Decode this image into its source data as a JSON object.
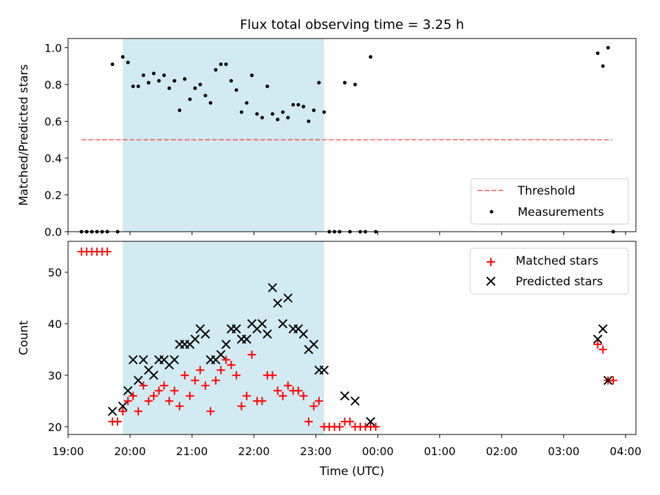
{
  "title": "Flux total observing time = 3.25 h",
  "xlabel": "Time (UTC)",
  "x_tick_labels": [
    "19:00",
    "20:00",
    "21:00",
    "22:00",
    "23:00",
    "00:00",
    "01:00",
    "02:00",
    "03:00",
    "04:00"
  ],
  "colors": {
    "shade": "#add8e6",
    "threshold": "#ff0000",
    "measurements": "#000000",
    "matched": "#ff0000",
    "predicted": "#000000"
  },
  "chart_data": [
    {
      "type": "scatter",
      "panel": "top",
      "ylabel": "Matched/Predicted stars",
      "xlim": [
        "19:00",
        "04:10"
      ],
      "ylim": [
        0,
        1.05
      ],
      "y_ticks": [
        0.0,
        0.2,
        0.4,
        0.6,
        0.8,
        1.0
      ],
      "y_tick_labels": [
        "0.0",
        "0.2",
        "0.4",
        "0.6",
        "0.8",
        "1.0"
      ],
      "shaded_span": [
        "19:53",
        "23:08"
      ],
      "legend_position": "lower right",
      "threshold": {
        "name": "Threshold",
        "y": 0.5,
        "x_range": [
          "19:13",
          "03:47"
        ],
        "style": "dashed"
      },
      "series": [
        {
          "name": "Measurements",
          "marker": "dot",
          "points": [
            [
              "19:13",
              0
            ],
            [
              "19:18",
              0
            ],
            [
              "19:23",
              0
            ],
            [
              "19:28",
              0
            ],
            [
              "19:33",
              0
            ],
            [
              "19:38",
              0
            ],
            [
              "19:43",
              0.91
            ],
            [
              "19:48",
              0
            ],
            [
              "19:53",
              0.95
            ],
            [
              "19:58",
              0.92
            ],
            [
              "20:03",
              0.79
            ],
            [
              "20:08",
              0.79
            ],
            [
              "20:13",
              0.85
            ],
            [
              "20:18",
              0.81
            ],
            [
              "20:23",
              0.86
            ],
            [
              "20:28",
              0.82
            ],
            [
              "20:33",
              0.85
            ],
            [
              "20:38",
              0.78
            ],
            [
              "20:43",
              0.82
            ],
            [
              "20:48",
              0.66
            ],
            [
              "20:53",
              0.83
            ],
            [
              "20:58",
              0.72
            ],
            [
              "21:03",
              0.78
            ],
            [
              "21:08",
              0.8
            ],
            [
              "21:13",
              0.74
            ],
            [
              "21:18",
              0.7
            ],
            [
              "21:23",
              0.88
            ],
            [
              "21:28",
              0.91
            ],
            [
              "21:33",
              0.91
            ],
            [
              "21:38",
              0.82
            ],
            [
              "21:43",
              0.77
            ],
            [
              "21:48",
              0.65
            ],
            [
              "21:53",
              0.7
            ],
            [
              "21:58",
              0.85
            ],
            [
              "22:03",
              0.64
            ],
            [
              "22:08",
              0.62
            ],
            [
              "22:13",
              0.79
            ],
            [
              "22:18",
              0.64
            ],
            [
              "22:23",
              0.61
            ],
            [
              "22:28",
              0.65
            ],
            [
              "22:33",
              0.62
            ],
            [
              "22:38",
              0.69
            ],
            [
              "22:43",
              0.69
            ],
            [
              "22:48",
              0.68
            ],
            [
              "22:53",
              0.6
            ],
            [
              "22:58",
              0.66
            ],
            [
              "23:03",
              0.81
            ],
            [
              "23:08",
              0.65
            ],
            [
              "23:13",
              0
            ],
            [
              "23:18",
              0
            ],
            [
              "23:23",
              0
            ],
            [
              "23:28",
              0.81
            ],
            [
              "23:33",
              0
            ],
            [
              "23:38",
              0.8
            ],
            [
              "23:43",
              0
            ],
            [
              "23:48",
              0
            ],
            [
              "23:53",
              0.95
            ],
            [
              "23:58",
              0
            ],
            [
              "03:33",
              0.97
            ],
            [
              "03:38",
              0.9
            ],
            [
              "03:43",
              1.0
            ],
            [
              "03:48",
              0
            ]
          ]
        }
      ]
    },
    {
      "type": "scatter",
      "panel": "bottom",
      "ylabel": "Count",
      "xlim": [
        "19:00",
        "04:10"
      ],
      "ylim": [
        18.5,
        56
      ],
      "y_ticks": [
        20,
        30,
        40,
        50
      ],
      "y_tick_labels": [
        "20",
        "30",
        "40",
        "50"
      ],
      "shaded_span": [
        "19:53",
        "23:08"
      ],
      "legend_position": "upper right",
      "series": [
        {
          "name": "Matched stars",
          "marker": "plus",
          "points": [
            [
              "19:13",
              54
            ],
            [
              "19:18",
              54
            ],
            [
              "19:23",
              54
            ],
            [
              "19:28",
              54
            ],
            [
              "19:33",
              54
            ],
            [
              "19:38",
              54
            ],
            [
              "19:43",
              21
            ],
            [
              "19:48",
              21
            ],
            [
              "19:53",
              23
            ],
            [
              "19:58",
              25
            ],
            [
              "20:03",
              26
            ],
            [
              "20:08",
              23
            ],
            [
              "20:13",
              28
            ],
            [
              "20:18",
              25
            ],
            [
              "20:23",
              26
            ],
            [
              "20:28",
              27
            ],
            [
              "20:33",
              28
            ],
            [
              "20:38",
              25
            ],
            [
              "20:43",
              27
            ],
            [
              "20:48",
              24
            ],
            [
              "20:53",
              30
            ],
            [
              "20:58",
              26
            ],
            [
              "21:03",
              29
            ],
            [
              "21:08",
              31
            ],
            [
              "21:13",
              28
            ],
            [
              "21:18",
              23
            ],
            [
              "21:23",
              29
            ],
            [
              "21:28",
              31
            ],
            [
              "21:33",
              33
            ],
            [
              "21:38",
              32
            ],
            [
              "21:43",
              30
            ],
            [
              "21:48",
              24
            ],
            [
              "21:53",
              26
            ],
            [
              "21:58",
              34
            ],
            [
              "22:03",
              25
            ],
            [
              "22:08",
              25
            ],
            [
              "22:13",
              30
            ],
            [
              "22:18",
              30
            ],
            [
              "22:23",
              27
            ],
            [
              "22:28",
              26
            ],
            [
              "22:33",
              28
            ],
            [
              "22:38",
              27
            ],
            [
              "22:43",
              27
            ],
            [
              "22:48",
              26
            ],
            [
              "22:53",
              21
            ],
            [
              "22:58",
              24
            ],
            [
              "23:03",
              25
            ],
            [
              "23:08",
              20
            ],
            [
              "23:13",
              20
            ],
            [
              "23:18",
              20
            ],
            [
              "23:23",
              20
            ],
            [
              "23:28",
              21
            ],
            [
              "23:33",
              21
            ],
            [
              "23:38",
              20
            ],
            [
              "23:43",
              20
            ],
            [
              "23:48",
              20
            ],
            [
              "23:53",
              20
            ],
            [
              "23:58",
              20
            ],
            [
              "03:33",
              36
            ],
            [
              "03:38",
              35
            ],
            [
              "03:43",
              29
            ],
            [
              "03:48",
              29
            ]
          ]
        },
        {
          "name": "Predicted stars",
          "marker": "x",
          "points": [
            [
              "19:43",
              23
            ],
            [
              "19:53",
              24
            ],
            [
              "19:58",
              27
            ],
            [
              "20:03",
              33
            ],
            [
              "20:08",
              29
            ],
            [
              "20:13",
              33
            ],
            [
              "20:18",
              31
            ],
            [
              "20:23",
              30
            ],
            [
              "20:28",
              33
            ],
            [
              "20:33",
              33
            ],
            [
              "20:38",
              32
            ],
            [
              "20:43",
              33
            ],
            [
              "20:48",
              36
            ],
            [
              "20:53",
              36
            ],
            [
              "20:58",
              36
            ],
            [
              "21:03",
              37
            ],
            [
              "21:08",
              39
            ],
            [
              "21:13",
              38
            ],
            [
              "21:18",
              33
            ],
            [
              "21:23",
              33
            ],
            [
              "21:28",
              34
            ],
            [
              "21:33",
              36
            ],
            [
              "21:38",
              39
            ],
            [
              "21:43",
              39
            ],
            [
              "21:48",
              37
            ],
            [
              "21:53",
              37
            ],
            [
              "21:58",
              40
            ],
            [
              "22:03",
              39
            ],
            [
              "22:08",
              40
            ],
            [
              "22:13",
              38
            ],
            [
              "22:18",
              47
            ],
            [
              "22:23",
              44
            ],
            [
              "22:28",
              40
            ],
            [
              "22:33",
              45
            ],
            [
              "22:38",
              39
            ],
            [
              "22:43",
              39
            ],
            [
              "22:48",
              38
            ],
            [
              "22:53",
              35
            ],
            [
              "22:58",
              36
            ],
            [
              "23:03",
              31
            ],
            [
              "23:08",
              31
            ],
            [
              "23:28",
              26
            ],
            [
              "23:38",
              25
            ],
            [
              "23:53",
              21
            ],
            [
              "03:33",
              37
            ],
            [
              "03:38",
              39
            ],
            [
              "03:43",
              29
            ]
          ]
        }
      ]
    }
  ]
}
